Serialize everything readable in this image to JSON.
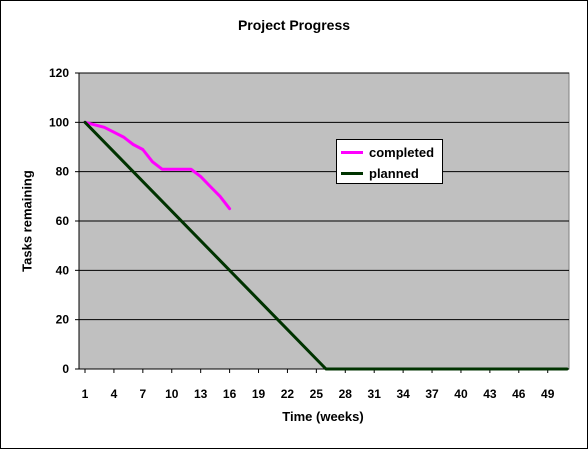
{
  "chart_data": {
    "type": "line",
    "title": "Project Progress",
    "xlabel": "Time (weeks)",
    "ylabel": "Tasks remaining",
    "xlim": [
      1,
      51
    ],
    "ylim": [
      0,
      120
    ],
    "x_tick_labels": [
      1,
      4,
      7,
      10,
      13,
      16,
      19,
      22,
      25,
      28,
      31,
      34,
      37,
      40,
      43,
      46,
      49
    ],
    "y_tick_labels": [
      0,
      20,
      40,
      60,
      80,
      100,
      120
    ],
    "grid": "horizontal",
    "legend_position": "top-right",
    "plot_background": "#c0c0c0",
    "series": [
      {
        "name": "completed",
        "color": "#ff00ff",
        "x": [
          1,
          2,
          3,
          4,
          5,
          6,
          7,
          8,
          9,
          10,
          11,
          12,
          13,
          14,
          15,
          16
        ],
        "y": [
          100,
          99,
          98,
          96,
          94,
          91,
          89,
          84,
          81,
          81,
          81,
          81,
          78,
          74,
          70,
          65
        ]
      },
      {
        "name": "planned",
        "color": "#003300",
        "x": [
          1,
          26,
          51
        ],
        "y": [
          100,
          0,
          0
        ]
      }
    ]
  }
}
